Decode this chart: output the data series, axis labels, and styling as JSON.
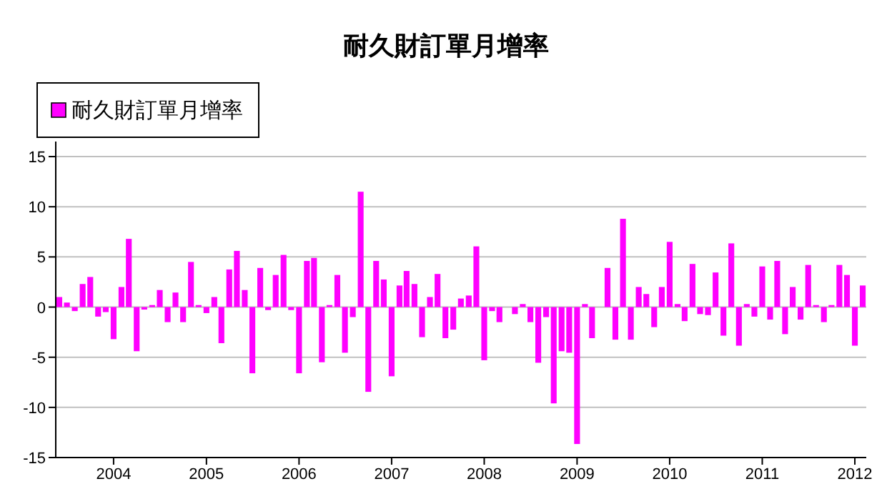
{
  "chart_data": {
    "type": "bar",
    "title": "耐久財訂單月增率",
    "legend": "top left",
    "grid": "y",
    "x": [
      "2003-06",
      "2003-07",
      "2003-08",
      "2003-09",
      "2003-10",
      "2003-11",
      "2003-12",
      "2004-01",
      "2004-02",
      "2004-03",
      "2004-04",
      "2004-05",
      "2004-06",
      "2004-07",
      "2004-08",
      "2004-09",
      "2004-10",
      "2004-11",
      "2004-12",
      "2005-01",
      "2005-02",
      "2005-03",
      "2005-04",
      "2005-05",
      "2005-06",
      "2005-07",
      "2005-08",
      "2005-09",
      "2005-10",
      "2005-11",
      "2005-12",
      "2006-01",
      "2006-02",
      "2006-03",
      "2006-04",
      "2006-05",
      "2006-06",
      "2006-07",
      "2006-08",
      "2006-09",
      "2006-10",
      "2006-11",
      "2006-12",
      "2007-01",
      "2007-02",
      "2007-03",
      "2007-04",
      "2007-05",
      "2007-06",
      "2007-07",
      "2007-08",
      "2007-09",
      "2007-10",
      "2007-11",
      "2007-12",
      "2008-01",
      "2008-02",
      "2008-03",
      "2008-04",
      "2008-05",
      "2008-06",
      "2008-07",
      "2008-08",
      "2008-09",
      "2008-10",
      "2008-11",
      "2008-12",
      "2009-01",
      "2009-02",
      "2009-03",
      "2009-04",
      "2009-05",
      "2009-06",
      "2009-07",
      "2009-08",
      "2009-09",
      "2009-10",
      "2009-11",
      "2009-12",
      "2010-01",
      "2010-02",
      "2010-03",
      "2010-04",
      "2010-05",
      "2010-06",
      "2010-07",
      "2010-08",
      "2010-09",
      "2010-10",
      "2010-11",
      "2010-12",
      "2011-01",
      "2011-02",
      "2011-03",
      "2011-04",
      "2011-05",
      "2011-06",
      "2011-07",
      "2011-08",
      "2011-09",
      "2011-10",
      "2011-11",
      "2011-12",
      "2012-01",
      "2012-02"
    ],
    "series": [
      {
        "name": "耐久財訂單月增率",
        "color": "#ff00ff",
        "values": [
          1.0,
          0.45,
          -0.4,
          2.3,
          3.0,
          -0.95,
          -0.5,
          -3.2,
          2.0,
          6.8,
          -4.4,
          -0.25,
          0.2,
          1.7,
          -1.5,
          1.45,
          -1.5,
          4.5,
          0.2,
          -0.6,
          1.0,
          -3.6,
          3.75,
          5.6,
          1.7,
          -6.6,
          3.9,
          -0.3,
          3.2,
          5.2,
          -0.3,
          -6.6,
          4.6,
          4.9,
          -5.5,
          0.2,
          3.2,
          -4.55,
          -1.0,
          11.5,
          -8.45,
          4.6,
          2.75,
          -6.9,
          2.15,
          3.6,
          2.3,
          -3.0,
          1.0,
          3.3,
          -3.1,
          -2.25,
          0.85,
          1.15,
          6.05,
          -5.3,
          -0.4,
          -1.5,
          0,
          -0.7,
          0.3,
          -1.5,
          -5.55,
          -1.0,
          -9.6,
          -4.4,
          -4.55,
          -13.65,
          0.3,
          -3.1,
          0,
          3.9,
          -3.25,
          8.8,
          -3.25,
          2.0,
          1.3,
          -2.0,
          2.0,
          6.5,
          0.3,
          -1.4,
          4.3,
          -0.7,
          -0.8,
          3.45,
          -2.85,
          6.35,
          -3.85,
          0.3,
          -0.95,
          4.05,
          -1.25,
          4.6,
          -2.7,
          2.0,
          -1.25,
          4.2,
          0.2,
          -1.5,
          0.2,
          4.2,
          3.2,
          -3.85,
          2.15
        ]
      }
    ],
    "xlim": [
      "2003-05-18",
      "2012-02-15"
    ],
    "xticks": [
      "2004",
      "2005",
      "2006",
      "2007",
      "2008",
      "2009",
      "2010",
      "2011",
      "2012"
    ],
    "ylim": [
      -15,
      16.5
    ],
    "yticks": [
      -15,
      -10,
      -5,
      0,
      5,
      10,
      15
    ]
  }
}
